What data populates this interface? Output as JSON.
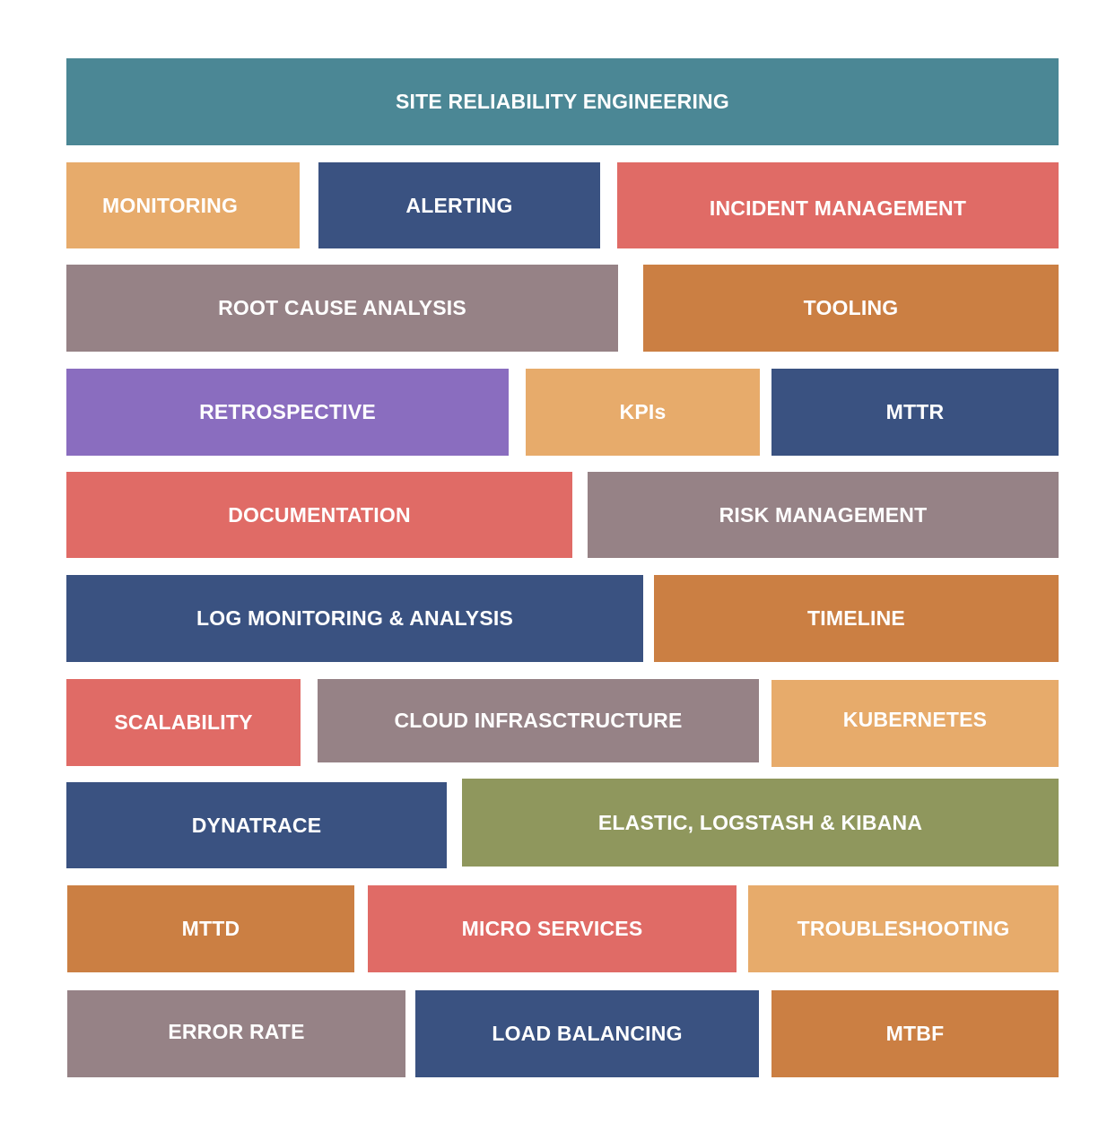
{
  "tiles": {
    "sre": "SITE RELIABILITY ENGINEERING",
    "monitoring": "MONITORING",
    "alerting": "ALERTING",
    "incident_management": "INCIDENT MANAGEMENT",
    "root_cause_analysis": "ROOT CAUSE ANALYSIS",
    "tooling": "TOOLING",
    "retrospective": "RETROSPECTIVE",
    "kpis": "KPIs",
    "mttr": "MTTR",
    "documentation": "DOCUMENTATION",
    "risk_management": "RISK MANAGEMENT",
    "log_monitoring": "LOG MONITORING & ANALYSIS",
    "timeline": "TIMELINE",
    "scalability": "SCALABILITY",
    "cloud_infrastructure": "CLOUD INFRASCTRUCTURE",
    "kubernetes": "KUBERNETES",
    "dynatrace": "DYNATRACE",
    "elk": "ELASTIC, LOGSTASH & KIBANA",
    "mttd": "MTTD",
    "micro_services": "MICRO SERVICES",
    "troubleshooting": "TROUBLESHOOTING",
    "error_rate": "ERROR RATE",
    "load_balancing": "LOAD BALANCING",
    "mtbf": "MTBF"
  },
  "colors": {
    "teal": "#4b8795",
    "sand": "#e7ab6b",
    "navy": "#3a5281",
    "coral": "#e06b66",
    "mauve": "#968286",
    "copper": "#cb7f43",
    "violet": "#8a6dbf",
    "olive": "#8f975d",
    "text": "#ffffff"
  }
}
